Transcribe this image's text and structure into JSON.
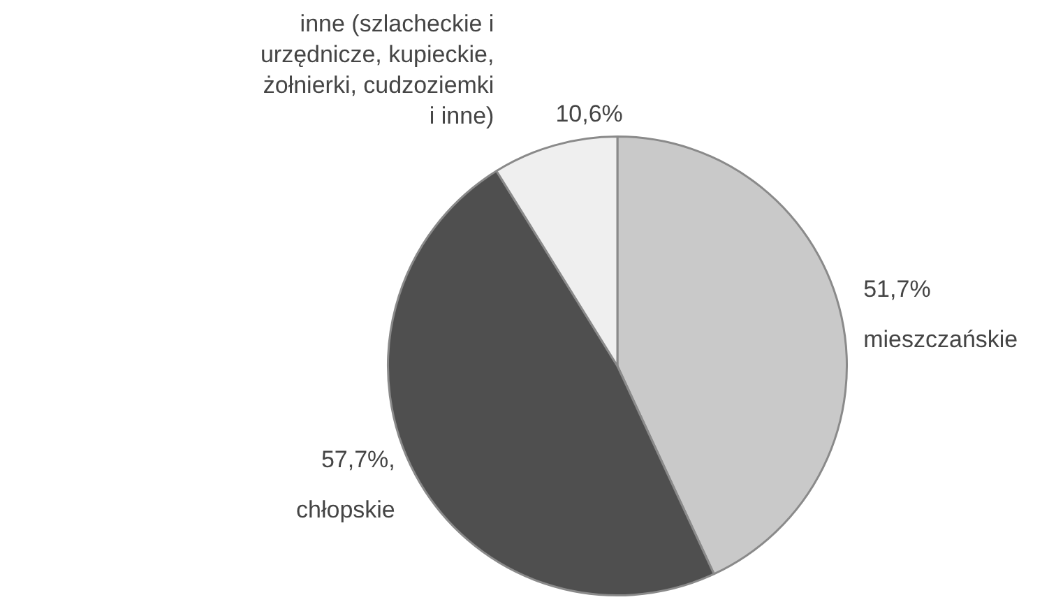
{
  "chart_data": {
    "type": "pie",
    "categories": [
      "mieszczańskie",
      "chłopskie",
      "inne (szlacheckie i urzędnicze, kupieckie, żołnierki, cudzoziemki i inne)"
    ],
    "values": [
      51.7,
      57.7,
      10.6
    ],
    "value_labels": [
      "51,7%",
      "57,7%,",
      "10,6%"
    ],
    "colors": [
      "#c9c9c9",
      "#4f4f4f",
      "#efefef"
    ],
    "legend": false
  }
}
